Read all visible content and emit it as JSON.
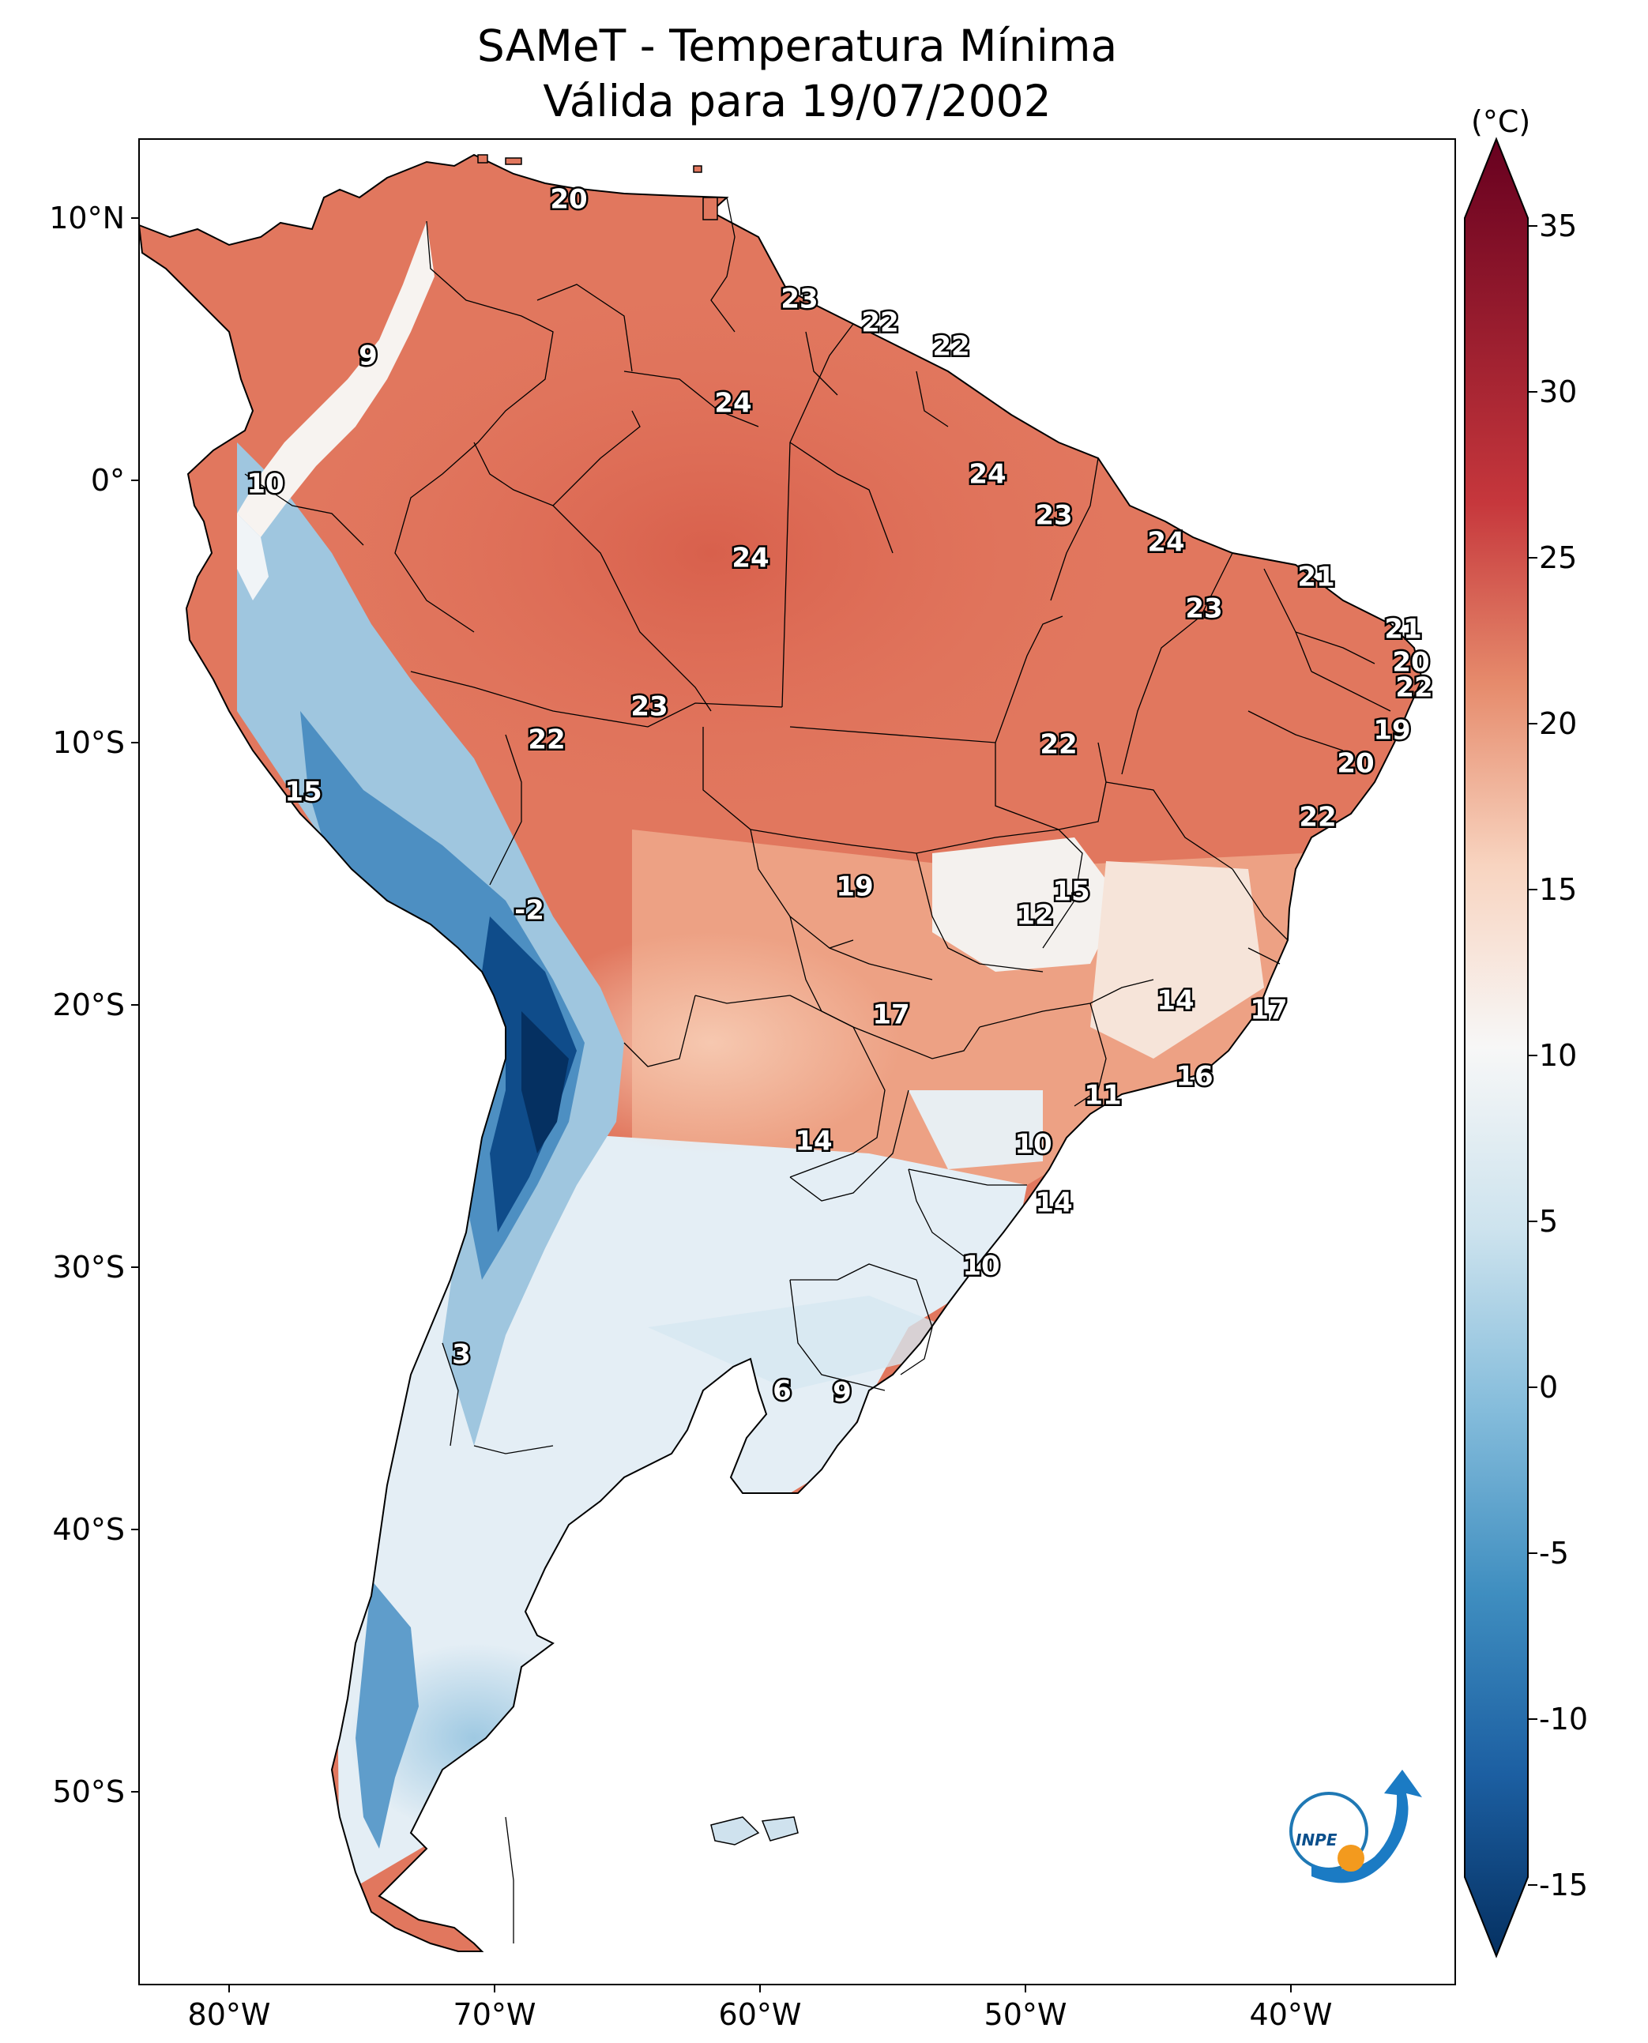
{
  "title": {
    "line1": "SAMeT - Temperatura Mínima",
    "line2": "Válida para 19/07/2002"
  },
  "axes": {
    "lat_labels": [
      "10°N",
      "0°",
      "10°S",
      "20°S",
      "30°S",
      "40°S",
      "50°S"
    ],
    "lon_labels": [
      "80°W",
      "70°W",
      "60°W",
      "50°W",
      "40°W"
    ]
  },
  "colorbar": {
    "unit": "(°C)",
    "ticks": [
      "35",
      "30",
      "25",
      "20",
      "15",
      "10",
      "5",
      "0",
      "-5",
      "-10",
      "-15"
    ],
    "colors": {
      "c35": "#67001f",
      "c25": "#c6373c",
      "c20": "#e68b6c",
      "c15": "#f8d4c0",
      "c10": "#f7f7f7",
      "c5": "#cde3ee",
      "c0": "#84bcdb",
      "cm5": "#3f8ec0",
      "cm10": "#1c5fa2",
      "cm15": "#053061"
    }
  },
  "value_labels": [
    {
      "id": "v1",
      "text": "20"
    },
    {
      "id": "v2",
      "text": "23"
    },
    {
      "id": "v3",
      "text": "22"
    },
    {
      "id": "v4",
      "text": "22"
    },
    {
      "id": "v5",
      "text": "9"
    },
    {
      "id": "v6",
      "text": "24"
    },
    {
      "id": "v7",
      "text": "10"
    },
    {
      "id": "v8",
      "text": "24"
    },
    {
      "id": "v9",
      "text": "23"
    },
    {
      "id": "v10",
      "text": "24"
    },
    {
      "id": "v11",
      "text": "24"
    },
    {
      "id": "v12",
      "text": "21"
    },
    {
      "id": "v13",
      "text": "23"
    },
    {
      "id": "v14",
      "text": "21"
    },
    {
      "id": "v15",
      "text": "20"
    },
    {
      "id": "v16",
      "text": "22"
    },
    {
      "id": "v17",
      "text": "23"
    },
    {
      "id": "v18",
      "text": "19"
    },
    {
      "id": "v19",
      "text": "22"
    },
    {
      "id": "v20",
      "text": "22"
    },
    {
      "id": "v21",
      "text": "20"
    },
    {
      "id": "v22",
      "text": "15"
    },
    {
      "id": "v23",
      "text": "22"
    },
    {
      "id": "v24",
      "text": "19"
    },
    {
      "id": "v25",
      "text": "15"
    },
    {
      "id": "v26",
      "text": "-2"
    },
    {
      "id": "v27",
      "text": "12"
    },
    {
      "id": "v28",
      "text": "14"
    },
    {
      "id": "v29",
      "text": "17"
    },
    {
      "id": "v30",
      "text": "17"
    },
    {
      "id": "v31",
      "text": "16"
    },
    {
      "id": "v32",
      "text": "11"
    },
    {
      "id": "v33",
      "text": "14"
    },
    {
      "id": "v34",
      "text": "10"
    },
    {
      "id": "v35",
      "text": "14"
    },
    {
      "id": "v36",
      "text": "10"
    },
    {
      "id": "v37",
      "text": "3"
    },
    {
      "id": "v38",
      "text": "6"
    },
    {
      "id": "v39",
      "text": "9"
    }
  ],
  "logo": {
    "text": "INPE"
  }
}
